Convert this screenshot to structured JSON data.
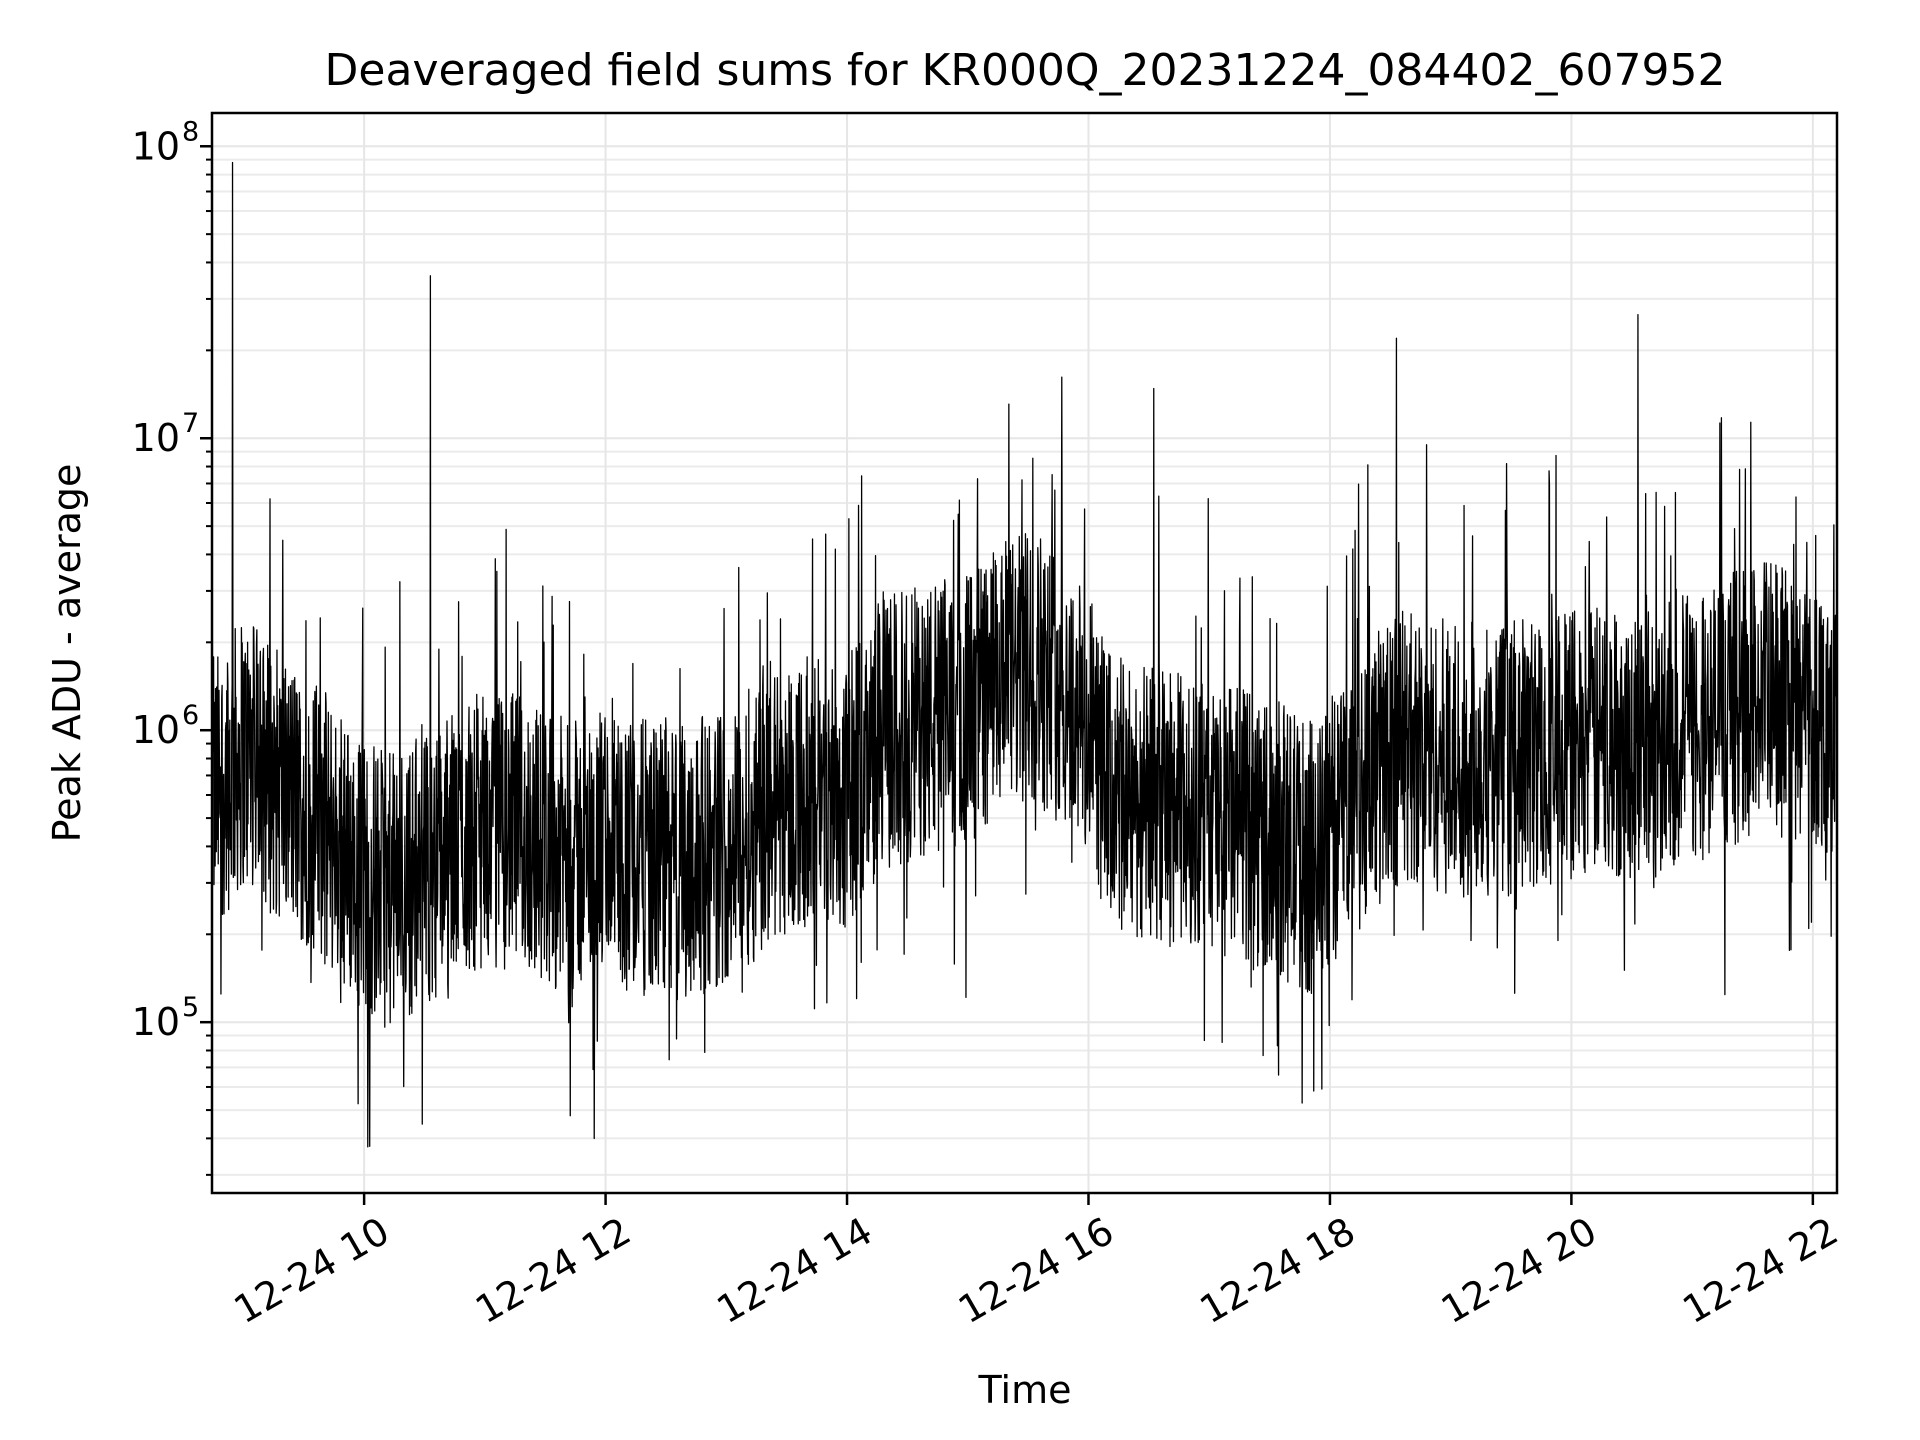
{
  "chart_data": {
    "type": "line",
    "title": "Deaveraged field sums for KR000Q_20231224_084402_607952",
    "xlabel": "Time",
    "ylabel": "Peak ADU - average",
    "x_axis": {
      "type": "datetime",
      "range_hours": [
        8.74,
        22.2
      ],
      "ticks": [
        {
          "hour": 10,
          "label": "12-24 10"
        },
        {
          "hour": 12,
          "label": "12-24 12"
        },
        {
          "hour": 14,
          "label": "12-24 14"
        },
        {
          "hour": 16,
          "label": "12-24 16"
        },
        {
          "hour": 18,
          "label": "12-24 18"
        },
        {
          "hour": 20,
          "label": "12-24 20"
        },
        {
          "hour": 22,
          "label": "12-24 22"
        }
      ]
    },
    "y_axis": {
      "scale": "log",
      "ylim": [
        26000,
        130000000
      ],
      "ticks": [
        {
          "value": 100000,
          "base": "10",
          "exp": "5"
        },
        {
          "value": 1000000,
          "base": "10",
          "exp": "6"
        },
        {
          "value": 10000000,
          "base": "10",
          "exp": "7"
        },
        {
          "value": 100000000,
          "base": "10",
          "exp": "8"
        }
      ]
    },
    "grid": true,
    "line_color": "#000000",
    "series_baseline": {
      "hours": [
        8.75,
        9.0,
        9.3,
        9.6,
        9.9,
        10.2,
        10.5,
        10.9,
        11.3,
        11.7,
        12.0,
        12.5,
        13.0,
        13.5,
        14.0,
        14.3,
        14.7,
        15.0,
        15.3,
        15.6,
        15.9,
        16.2,
        16.6,
        17.0,
        17.5,
        17.9,
        18.2,
        18.6,
        19.0,
        19.5,
        20.0,
        20.5,
        21.0,
        21.5,
        22.0,
        22.2
      ],
      "values": [
        600000,
        850000,
        650000,
        500000,
        350000,
        280000,
        330000,
        450000,
        450000,
        360000,
        400000,
        350000,
        400000,
        600000,
        600000,
        1000000,
        1100000,
        1200000,
        1500000,
        1700000,
        1200000,
        600000,
        550000,
        500000,
        450000,
        350000,
        650000,
        900000,
        800000,
        800000,
        900000,
        900000,
        1000000,
        1300000,
        1200000,
        1100000
      ]
    },
    "spikes": [
      {
        "hour": 8.91,
        "value": 88000000
      },
      {
        "hour": 9.22,
        "value": 6200000
      },
      {
        "hour": 10.55,
        "value": 36000000
      },
      {
        "hour": 11.1,
        "value": 3500000
      },
      {
        "hour": 15.45,
        "value": 7200000
      },
      {
        "hour": 16.54,
        "value": 14800000
      },
      {
        "hour": 17.25,
        "value": 2200000
      },
      {
        "hour": 18.55,
        "value": 22000000
      },
      {
        "hour": 18.8,
        "value": 9500000
      },
      {
        "hour": 20.55,
        "value": 26500000
      },
      {
        "hour": 21.35,
        "value": 4900000
      },
      {
        "hour": 21.95,
        "value": 4400000
      }
    ]
  }
}
